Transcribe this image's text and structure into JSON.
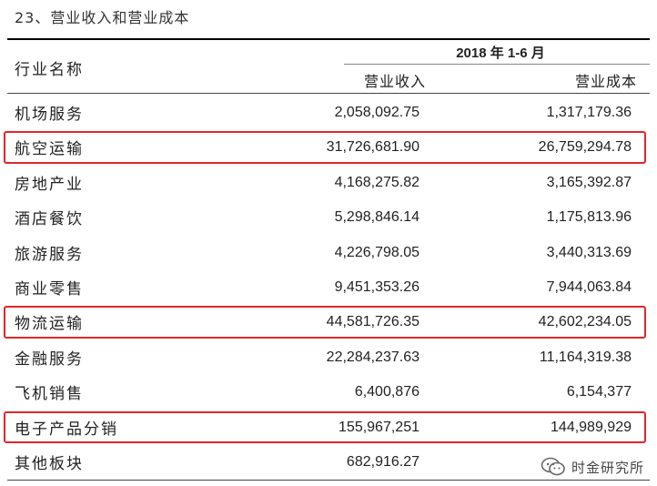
{
  "section_title": "23、营业收入和营业成本",
  "table": {
    "col_industry": "行业名称",
    "period": "2018 年 1-6 月",
    "col_revenue": "营业收入",
    "col_cost": "营业成本",
    "rows": [
      {
        "name": "机场服务",
        "revenue": "2,058,092.75",
        "cost": "1,317,179.36"
      },
      {
        "name": "航空运输",
        "revenue": "31,726,681.90",
        "cost": "26,759,294.78",
        "highlighted": true
      },
      {
        "name": "房地产业",
        "revenue": "4,168,275.82",
        "cost": "3,165,392.87"
      },
      {
        "name": "酒店餐饮",
        "revenue": "5,298,846.14",
        "cost": "1,175,813.96"
      },
      {
        "name": "旅游服务",
        "revenue": "4,226,798.05",
        "cost": "3,440,313.69"
      },
      {
        "name": "商业零售",
        "revenue": "9,451,353.26",
        "cost": "7,944,063.84"
      },
      {
        "name": "物流运输",
        "revenue": "44,581,726.35",
        "cost": "42,602,234.05",
        "highlighted": true
      },
      {
        "name": "金融服务",
        "revenue": "22,284,237.63",
        "cost": "11,164,319.38"
      },
      {
        "name": "飞机销售",
        "revenue": "6,400,876",
        "cost": "6,154,377"
      },
      {
        "name": "电子产品分销",
        "revenue": "155,967,251",
        "cost": "144,989,929",
        "highlighted": true
      },
      {
        "name": "其他板块",
        "revenue": "682,916.27",
        "cost": ""
      }
    ]
  },
  "watermark": {
    "text": "时金研究所",
    "icon": "wechat-icon"
  },
  "colors": {
    "highlight": "#e0262b",
    "rule": "#000000"
  }
}
